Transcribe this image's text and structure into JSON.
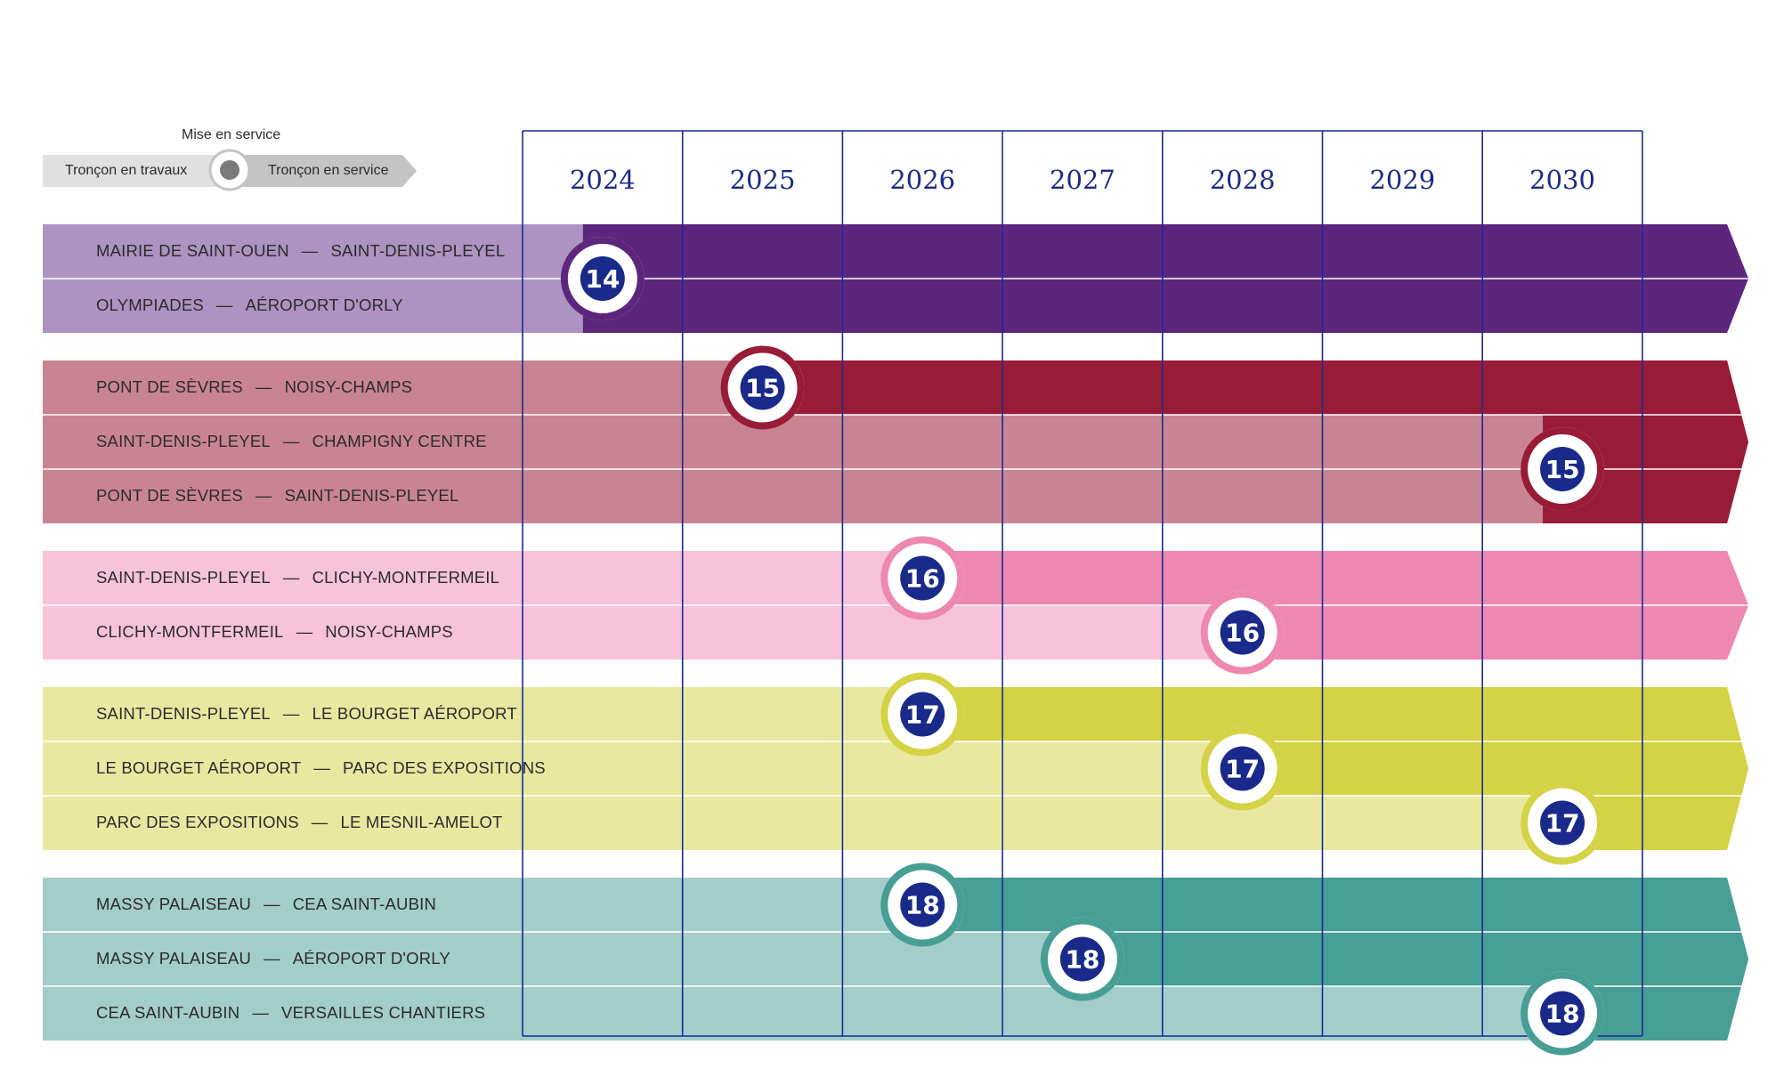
{
  "legend": {
    "mise_en_service": "Mise en service",
    "troncon_travaux": "Tronçon en travaux",
    "troncon_service": "Tronçon en service"
  },
  "years": [
    "2024",
    "2025",
    "2026",
    "2027",
    "2028",
    "2029",
    "2030"
  ],
  "separator": "—",
  "lines": [
    {
      "number": "14",
      "light": "#ad93c1",
      "dark": "#5d267d",
      "rows": [
        {
          "from": "MAIRIE DE SAINT-OUEN",
          "to": "SAINT-DENIS-PLEYEL"
        },
        {
          "from": "OLYMPIADES",
          "to": "AÉROPORT D'ORLY"
        }
      ],
      "openings": [
        {
          "rows": [
            0,
            1
          ],
          "year": "2024"
        }
      ]
    },
    {
      "number": "15",
      "light": "#c98494",
      "dark": "#981c37",
      "rows": [
        {
          "from": "PONT DE SÈVRES",
          "to": "NOISY-CHAMPS"
        },
        {
          "from": "SAINT-DENIS-PLEYEL",
          "to": "CHAMPIGNY CENTRE"
        },
        {
          "from": "PONT DE SÈVRES",
          "to": "SAINT-DENIS-PLEYEL"
        }
      ],
      "openings": [
        {
          "rows": [
            0
          ],
          "year": "2025"
        },
        {
          "rows": [
            1,
            2
          ],
          "year": "2030"
        }
      ]
    },
    {
      "number": "16",
      "light": "#f6c3d9",
      "dark": "#ee88b1",
      "rows": [
        {
          "from": "SAINT-DENIS-PLEYEL",
          "to": "CLICHY-MONTFERMEIL"
        },
        {
          "from": "CLICHY-MONTFERMEIL",
          "to": "NOISY-CHAMPS"
        }
      ],
      "openings": [
        {
          "rows": [
            0
          ],
          "year": "2026"
        },
        {
          "rows": [
            1
          ],
          "year": "2028"
        }
      ]
    },
    {
      "number": "17",
      "light": "#e9e8a1",
      "dark": "#d4d245",
      "rows": [
        {
          "from": "SAINT-DENIS-PLEYEL",
          "to": "LE BOURGET AÉROPORT"
        },
        {
          "from": "LE BOURGET AÉROPORT",
          "to": "PARC DES EXPOSITIONS"
        },
        {
          "from": "PARC DES EXPOSITIONS",
          "to": "LE MESNIL-AMELOT"
        }
      ],
      "openings": [
        {
          "rows": [
            0
          ],
          "year": "2026"
        },
        {
          "rows": [
            1
          ],
          "year": "2028"
        },
        {
          "rows": [
            2
          ],
          "year": "2030"
        }
      ]
    },
    {
      "number": "18",
      "light": "#a3cdc9",
      "dark": "#479e94",
      "rows": [
        {
          "from": "MASSY PALAISEAU",
          "to": "CEA SAINT-AUBIN"
        },
        {
          "from": "MASSY PALAISEAU",
          "to": "AÉROPORT D'ORLY"
        },
        {
          "from": "CEA SAINT-AUBIN",
          "to": "VERSAILLES CHANTIERS"
        }
      ],
      "openings": [
        {
          "rows": [
            0
          ],
          "year": "2026"
        },
        {
          "rows": [
            1
          ],
          "year": "2027"
        },
        {
          "rows": [
            2
          ],
          "year": "2030"
        }
      ]
    }
  ],
  "colors": {
    "grid": "#1a2a9c",
    "badge": "#1a2a8a",
    "legend_grey_light": "#e0e0e0",
    "legend_grey_dark": "#c4c4c4"
  },
  "icons": {
    "mise_en_service": "circle-marker-icon",
    "badge": "line-number-roundel-icon"
  }
}
